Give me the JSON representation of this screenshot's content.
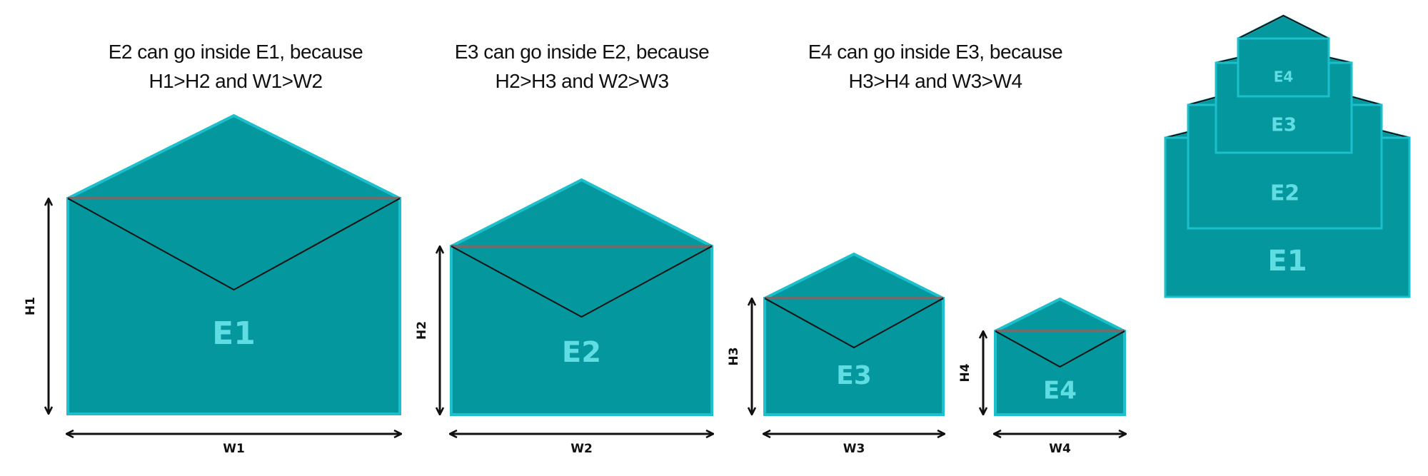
{
  "colors": {
    "envelope_fill": "#04979e",
    "envelope_border": "#1cc0cc",
    "flap_line": "#6e6e6e",
    "fold_line": "#111111",
    "label_color": "#5fdde3",
    "arrow_color": "#111111"
  },
  "captions": [
    {
      "line1": "E2 can go inside E1, because",
      "line2": "H1>H2 and W1>W2"
    },
    {
      "line1": "E3 can go inside E2, because",
      "line2": "H2>H3 and W2>W3"
    },
    {
      "line1": "E4 can go inside E3, because",
      "line2": "H3>H4 and W3>W4"
    }
  ],
  "envelopes": [
    {
      "label": "E1",
      "height_label": "H1",
      "width_label": "W1"
    },
    {
      "label": "E2",
      "height_label": "H2",
      "width_label": "W2"
    },
    {
      "label": "E3",
      "height_label": "H3",
      "width_label": "W3"
    },
    {
      "label": "E4",
      "height_label": "H4",
      "width_label": "W4"
    }
  ],
  "nested_stack": {
    "labels": [
      "E1",
      "E2",
      "E3",
      "E4"
    ]
  }
}
